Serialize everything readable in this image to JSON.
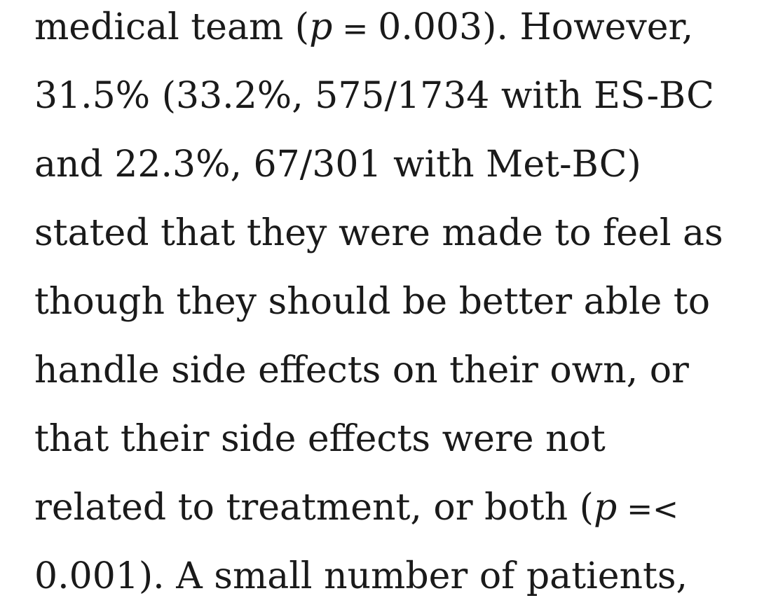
{
  "article": {
    "paragraph": {
      "lines": [
        {
          "pre": "medical team (",
          "sym": "p",
          "op": " = ",
          "post": "0.003). However,"
        },
        {
          "text": "31.5% (33.2%, 575/1734 with ES-BC"
        },
        {
          "text": "and 22.3%, 67/301 with Met-BC)"
        },
        {
          "text": "stated that they were made to feel as"
        },
        {
          "text": "though they should be better able to"
        },
        {
          "text": "handle side effects on their own, or"
        },
        {
          "text": "that their side effects were not"
        },
        {
          "pre": "related to treatment, or both (",
          "sym": "p",
          "op": " =<",
          "post": ""
        },
        {
          "text": "0.001). A small number of patients,"
        }
      ]
    }
  }
}
